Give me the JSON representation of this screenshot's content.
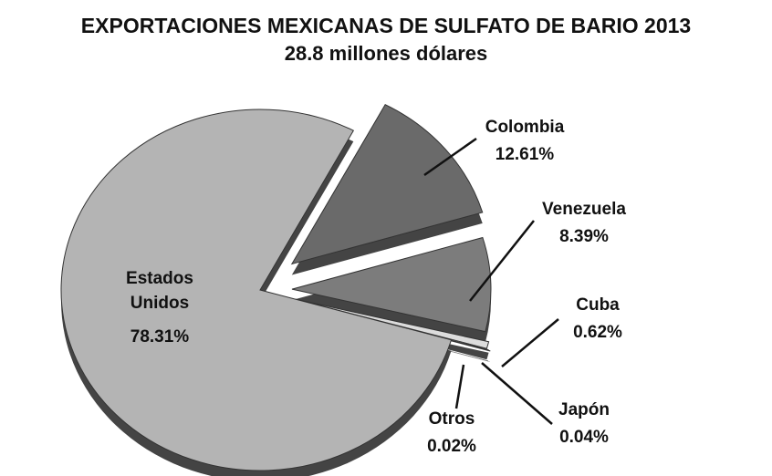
{
  "chart_data": {
    "type": "pie",
    "title": "EXPORTACIONES MEXICANAS DE SULFATO DE BARIO 2013",
    "subtitle": "28.8 millones dólares",
    "categories": [
      "Colombia",
      "Venezuela",
      "Cuba",
      "Japón",
      "Otros",
      "Estados Unidos"
    ],
    "values": [
      12.61,
      8.39,
      0.62,
      0.04,
      0.02,
      78.31
    ],
    "value_labels": [
      "12.61%",
      "8.39%",
      "0.62%",
      "0.04%",
      "0.02%",
      "78.31%"
    ],
    "colors": [
      "#6a6a6a",
      "#7c7c7c",
      "#dcdcdc",
      "#505050",
      "#2e2e2e",
      "#b4b4b4"
    ]
  }
}
